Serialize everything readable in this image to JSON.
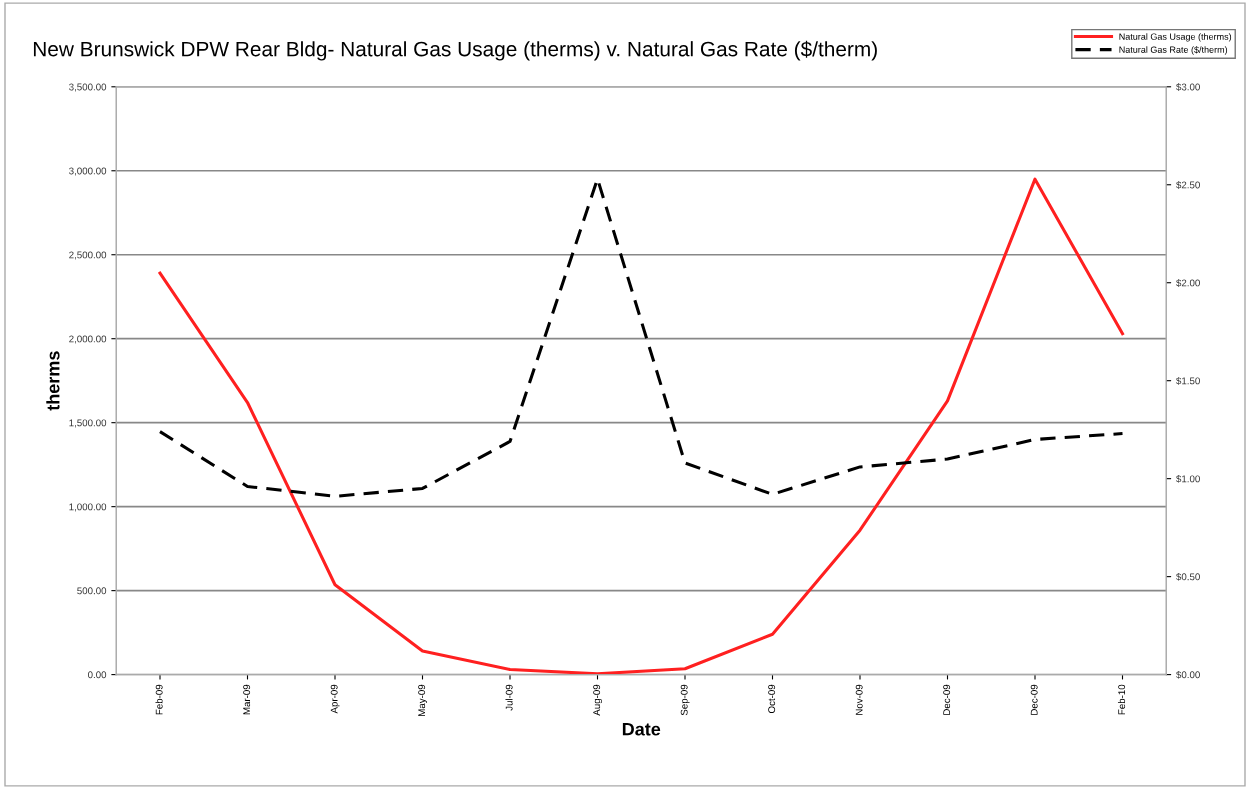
{
  "chart_data": {
    "type": "line",
    "title": "New Brunswick DPW Rear Bldg- Natural Gas Usage (therms) v. Natural Gas Rate ($/therm)",
    "xlabel": "Date",
    "ylabel": "therms",
    "categories": [
      "Feb-09",
      "Mar-09",
      "Apr-09",
      "May-09",
      "Jul-09",
      "Aug-09",
      "Sep-09",
      "Oct-09",
      "Nov-09",
      "Dec-09",
      "Dec-09",
      "Feb-10"
    ],
    "series": [
      {
        "name": "Natural Gas Usage (therms)",
        "color": "#ff2020",
        "line_style": "solid",
        "values": [
          2390,
          1620,
          535,
          140,
          30,
          5,
          35,
          240,
          860,
          1630,
          2950,
          2030
        ]
      },
      {
        "name": "Natural Gas Rate ($/therm)",
        "color": "#000000",
        "line_style": "dashed",
        "axis": "y2",
        "values": [
          1.24,
          0.96,
          0.91,
          0.95,
          1.19,
          2.53,
          1.08,
          0.92,
          1.06,
          1.1,
          1.2,
          1.23
        ]
      }
    ],
    "ylim": [
      0,
      3500
    ],
    "yticks": [
      {
        "value": 0,
        "label": "0.00"
      },
      {
        "value": 500,
        "label": "500.00"
      },
      {
        "value": 1000,
        "label": "1,000.00"
      },
      {
        "value": 1500,
        "label": "1,500.00"
      },
      {
        "value": 2000,
        "label": "2,000.00"
      },
      {
        "value": 2500,
        "label": "2,500.00"
      },
      {
        "value": 3000,
        "label": "3,000.00"
      },
      {
        "value": 3500,
        "label": "3,500.00"
      }
    ],
    "y2lim": [
      0,
      3
    ],
    "y2ticks": [
      {
        "value": 0,
        "label": "$0.00"
      },
      {
        "value": 0.5,
        "label": "$0.50"
      },
      {
        "value": 1,
        "label": "$1.00"
      },
      {
        "value": 1.5,
        "label": "$1.50"
      },
      {
        "value": 2,
        "label": "$2.00"
      },
      {
        "value": 2.5,
        "label": "$2.50"
      },
      {
        "value": 3,
        "label": "$3.00"
      }
    ],
    "grid": "y",
    "legend": "top right",
    "marker": "none"
  }
}
